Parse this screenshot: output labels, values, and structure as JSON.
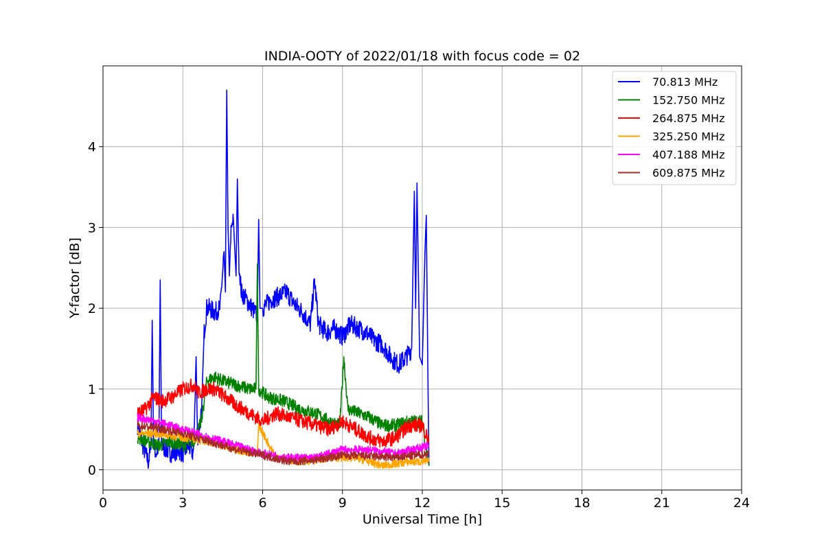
{
  "chart_data": {
    "type": "line",
    "title": "INDIA-OOTY of 2022/01/18 with focus code = 02",
    "xlabel": "Universal Time [h]",
    "ylabel": "Y-factor [dB]",
    "xlim": [
      0,
      24
    ],
    "ylim": [
      -0.25,
      5.0
    ],
    "xticks": [
      0,
      3,
      6,
      9,
      12,
      15,
      18,
      21,
      24
    ],
    "yticks": [
      0,
      1,
      2,
      3,
      4
    ],
    "grid": true,
    "legend_position": "top-right",
    "series": [
      {
        "name": " 70.813 MHz",
        "color": "#0000ff",
        "x": [
          1.3,
          1.5,
          1.7,
          1.8,
          1.85,
          1.9,
          2.0,
          2.1,
          2.15,
          2.2,
          2.4,
          2.6,
          2.8,
          3.0,
          3.2,
          3.4,
          3.5,
          3.55,
          3.7,
          3.8,
          3.9,
          4.0,
          4.2,
          4.4,
          4.55,
          4.6,
          4.65,
          4.7,
          4.75,
          4.8,
          4.9,
          5.0,
          5.05,
          5.1,
          5.2,
          5.4,
          5.6,
          5.8,
          5.85,
          5.9,
          6.0,
          6.3,
          6.6,
          6.9,
          7.2,
          7.5,
          7.8,
          7.95,
          8.1,
          8.4,
          8.7,
          9.0,
          9.3,
          9.6,
          9.9,
          10.2,
          10.5,
          10.8,
          11.1,
          11.4,
          11.6,
          11.7,
          11.75,
          11.8,
          11.9,
          12.0,
          12.1,
          12.15,
          12.2,
          12.25
        ],
        "y": [
          0.55,
          0.3,
          0.1,
          0.25,
          1.85,
          0.3,
          0.2,
          0.3,
          2.35,
          0.3,
          0.25,
          0.2,
          0.25,
          0.2,
          0.3,
          0.2,
          1.4,
          0.4,
          0.7,
          1.7,
          2.0,
          2.0,
          1.95,
          2.0,
          2.7,
          2.2,
          4.7,
          3.0,
          2.4,
          2.9,
          3.1,
          2.4,
          3.6,
          2.6,
          2.2,
          2.1,
          2.0,
          1.9,
          3.1,
          2.0,
          2.0,
          2.1,
          2.15,
          2.2,
          2.05,
          1.95,
          1.8,
          2.35,
          1.8,
          1.7,
          1.75,
          1.65,
          1.8,
          1.75,
          1.7,
          1.6,
          1.55,
          1.4,
          1.3,
          1.4,
          1.5,
          3.45,
          2.0,
          3.55,
          1.4,
          1.3,
          2.7,
          3.15,
          1.5,
          0.05
        ],
        "noise": 0.12
      },
      {
        "name": "152.750 MHz",
        "color": "#008000",
        "x": [
          1.3,
          1.7,
          2.1,
          2.5,
          3.0,
          3.4,
          3.7,
          3.9,
          4.2,
          4.5,
          5.0,
          5.5,
          5.75,
          5.8,
          5.85,
          6.2,
          6.8,
          7.4,
          8.0,
          8.5,
          8.9,
          9.05,
          9.2,
          9.6,
          10.0,
          10.5,
          11.0,
          11.5,
          12.0,
          12.25
        ],
        "y": [
          0.4,
          0.35,
          0.3,
          0.35,
          0.3,
          0.35,
          0.6,
          1.1,
          1.15,
          1.1,
          1.05,
          1.0,
          1.0,
          2.55,
          1.0,
          0.9,
          0.85,
          0.75,
          0.7,
          0.6,
          0.55,
          1.4,
          0.75,
          0.7,
          0.65,
          0.55,
          0.55,
          0.6,
          0.6,
          0.05
        ],
        "noise": 0.08
      },
      {
        "name": "264.875 MHz",
        "color": "#ff0000",
        "x": [
          1.3,
          1.6,
          1.9,
          2.2,
          2.6,
          3.0,
          3.4,
          3.6,
          3.9,
          4.2,
          4.6,
          5.0,
          5.5,
          6.0,
          6.5,
          7.0,
          7.5,
          8.0,
          8.5,
          9.0,
          9.5,
          10.0,
          10.5,
          11.0,
          11.5,
          12.0,
          12.25
        ],
        "y": [
          0.7,
          0.75,
          0.9,
          0.85,
          0.9,
          1.0,
          1.05,
          0.95,
          1.0,
          1.0,
          0.9,
          0.8,
          0.7,
          0.6,
          0.7,
          0.65,
          0.6,
          0.55,
          0.5,
          0.6,
          0.5,
          0.4,
          0.35,
          0.4,
          0.55,
          0.55,
          0.35
        ],
        "noise": 0.09
      },
      {
        "name": "325.250 MHz",
        "color": "#ffa500",
        "x": [
          1.3,
          2.0,
          3.0,
          4.0,
          5.0,
          5.8,
          5.85,
          6.5,
          7.5,
          8.5,
          9.5,
          10.5,
          11.5,
          12.25
        ],
        "y": [
          0.45,
          0.45,
          0.4,
          0.35,
          0.25,
          0.2,
          0.55,
          0.15,
          0.1,
          0.15,
          0.15,
          0.05,
          0.1,
          0.1
        ],
        "noise": 0.05
      },
      {
        "name": "407.188 MHz",
        "color": "#ff00ff",
        "x": [
          1.3,
          2.0,
          3.0,
          4.0,
          5.0,
          6.0,
          7.0,
          8.0,
          9.0,
          10.0,
          11.0,
          12.25
        ],
        "y": [
          0.65,
          0.6,
          0.5,
          0.4,
          0.3,
          0.2,
          0.15,
          0.15,
          0.25,
          0.25,
          0.2,
          0.3
        ],
        "noise": 0.05
      },
      {
        "name": "609.875 MHz",
        "color": "#a52a2a",
        "x": [
          1.3,
          2.0,
          3.0,
          4.0,
          5.0,
          6.0,
          7.0,
          8.0,
          9.0,
          10.0,
          11.0,
          12.25
        ],
        "y": [
          0.55,
          0.52,
          0.45,
          0.35,
          0.25,
          0.18,
          0.1,
          0.12,
          0.18,
          0.17,
          0.15,
          0.2
        ],
        "noise": 0.05
      }
    ]
  }
}
